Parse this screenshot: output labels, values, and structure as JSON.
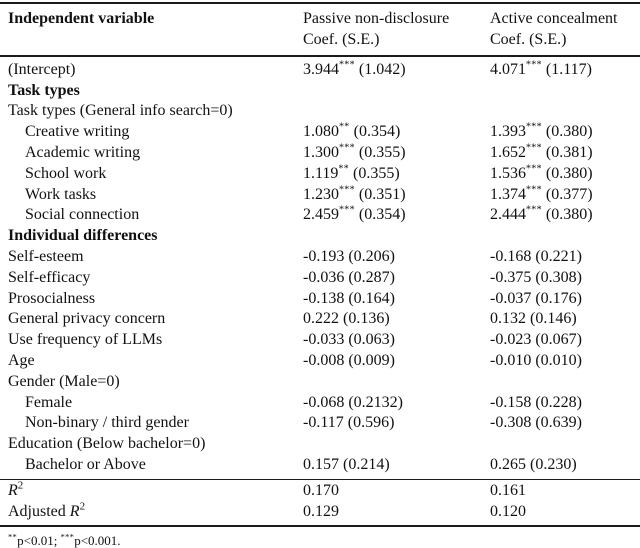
{
  "header": {
    "col1": "Independent variable",
    "col2_line1": "Passive non-disclosure",
    "col2_line2": "Coef. (S.E.)",
    "col3_line1": "Active concealment",
    "col3_line2": "Coef. (S.E.)"
  },
  "rows": [
    {
      "label": "(Intercept)",
      "indent": 0,
      "bold": false,
      "c2": {
        "coef": "3.944",
        "stars": "***",
        "se": "1.042"
      },
      "c3": {
        "coef": "4.071",
        "stars": "***",
        "se": "1.117"
      }
    },
    {
      "label": "Task types",
      "indent": 0,
      "bold": true,
      "c2": null,
      "c3": null
    },
    {
      "label": "Task types (General info search=0)",
      "indent": 0,
      "bold": false,
      "c2": null,
      "c3": null
    },
    {
      "label": "Creative writing",
      "indent": 1,
      "bold": false,
      "c2": {
        "coef": "1.080",
        "stars": "**",
        "se": "0.354"
      },
      "c3": {
        "coef": "1.393",
        "stars": "***",
        "se": "0.380"
      }
    },
    {
      "label": "Academic writing",
      "indent": 1,
      "bold": false,
      "c2": {
        "coef": "1.300",
        "stars": "***",
        "se": "0.355"
      },
      "c3": {
        "coef": "1.652",
        "stars": "***",
        "se": "0.381"
      }
    },
    {
      "label": "School work",
      "indent": 1,
      "bold": false,
      "c2": {
        "coef": "1.119",
        "stars": "**",
        "se": "0.355"
      },
      "c3": {
        "coef": "1.536",
        "stars": "***",
        "se": "0.380"
      }
    },
    {
      "label": "Work tasks",
      "indent": 1,
      "bold": false,
      "c2": {
        "coef": "1.230",
        "stars": "***",
        "se": "0.351"
      },
      "c3": {
        "coef": "1.374",
        "stars": "***",
        "se": "0.377"
      }
    },
    {
      "label": "Social connection",
      "indent": 1,
      "bold": false,
      "c2": {
        "coef": "2.459",
        "stars": "***",
        "se": "0.354"
      },
      "c3": {
        "coef": "2.444",
        "stars": "***",
        "se": "0.380"
      }
    },
    {
      "label": "Individual differences",
      "indent": 0,
      "bold": true,
      "c2": null,
      "c3": null
    },
    {
      "label": "Self-esteem",
      "indent": 0,
      "bold": false,
      "c2": {
        "coef": "-0.193",
        "stars": "",
        "se": "0.206"
      },
      "c3": {
        "coef": "-0.168",
        "stars": "",
        "se": "0.221"
      }
    },
    {
      "label": "Self-efficacy",
      "indent": 0,
      "bold": false,
      "c2": {
        "coef": "-0.036",
        "stars": "",
        "se": "0.287"
      },
      "c3": {
        "coef": "-0.375",
        "stars": "",
        "se": "0.308"
      }
    },
    {
      "label": "Prosocialness",
      "indent": 0,
      "bold": false,
      "c2": {
        "coef": "-0.138",
        "stars": "",
        "se": "0.164"
      },
      "c3": {
        "coef": "-0.037",
        "stars": "",
        "se": "0.176"
      }
    },
    {
      "label": "General privacy concern",
      "indent": 0,
      "bold": false,
      "c2": {
        "coef": "0.222",
        "stars": "",
        "se": "0.136"
      },
      "c3": {
        "coef": "0.132",
        "stars": "",
        "se": "0.146"
      }
    },
    {
      "label": "Use frequency of LLMs",
      "indent": 0,
      "bold": false,
      "c2": {
        "coef": "-0.033",
        "stars": "",
        "se": "0.063"
      },
      "c3": {
        "coef": "-0.023",
        "stars": "",
        "se": "0.067"
      }
    },
    {
      "label": "Age",
      "indent": 0,
      "bold": false,
      "c2": {
        "coef": "-0.008",
        "stars": "",
        "se": "0.009"
      },
      "c3": {
        "coef": "-0.010",
        "stars": "",
        "se": "0.010"
      }
    },
    {
      "label": "Gender (Male=0)",
      "indent": 0,
      "bold": false,
      "c2": null,
      "c3": null
    },
    {
      "label": "Female",
      "indent": 1,
      "bold": false,
      "c2": {
        "coef": "-0.068",
        "stars": "",
        "se": "0.2132"
      },
      "c3": {
        "coef": "-0.158",
        "stars": "",
        "se": "0.228"
      }
    },
    {
      "label": "Non-binary / third gender",
      "indent": 1,
      "bold": false,
      "c2": {
        "coef": "-0.117",
        "stars": "",
        "se": "0.596"
      },
      "c3": {
        "coef": "-0.308",
        "stars": "",
        "se": "0.639"
      }
    },
    {
      "label": "Education (Below bachelor=0)",
      "indent": 0,
      "bold": false,
      "c2": null,
      "c3": null
    },
    {
      "label": "Bachelor or Above",
      "indent": 1,
      "bold": false,
      "c2": {
        "coef": "0.157",
        "stars": "",
        "se": "0.214"
      },
      "c3": {
        "coef": "0.265",
        "stars": "",
        "se": "0.230"
      }
    }
  ],
  "stats": [
    {
      "label_prefix": "",
      "r_squared": true,
      "c2": "0.170",
      "c3": "0.161"
    },
    {
      "label_prefix": "Adjusted ",
      "r_squared": true,
      "c2": "0.129",
      "c3": "0.120"
    }
  ],
  "footnote_segments": [
    {
      "sup": "**"
    },
    {
      "text": "p<0.01; "
    },
    {
      "sup": "***"
    },
    {
      "text": "p<0.001."
    }
  ]
}
